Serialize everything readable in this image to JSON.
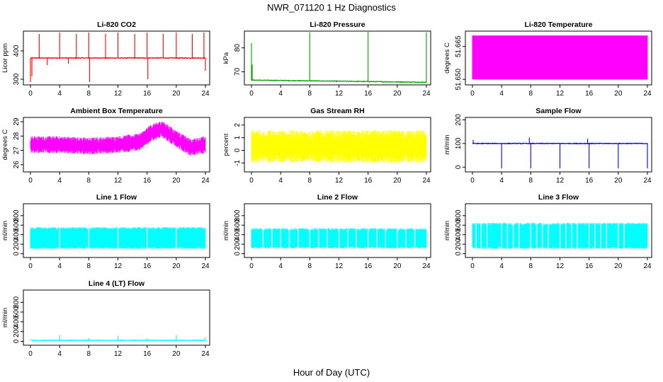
{
  "figure": {
    "title": "NWR_071120  1 Hz Diagnostics",
    "xlabel": "Hour of Day (UTC)"
  },
  "chart_data": [
    {
      "type": "line",
      "title": "Li-820 CO2",
      "ylabel": "Licor ppm",
      "color": "#ff0000",
      "xlim": [
        0,
        24
      ],
      "ylim": [
        280,
        470
      ],
      "yticks": [
        300,
        400
      ],
      "xticks": [
        0,
        4,
        8,
        12,
        16,
        20,
        24
      ],
      "baseline": 375,
      "spikes": [
        {
          "x": 0.0,
          "y": 290
        },
        {
          "x": 0.2,
          "y": 310
        },
        {
          "x": 1.2,
          "y": 460
        },
        {
          "x": 2.3,
          "y": 350
        },
        {
          "x": 4.0,
          "y": 465
        },
        {
          "x": 5.2,
          "y": 355
        },
        {
          "x": 6.3,
          "y": 460
        },
        {
          "x": 8.0,
          "y": 465
        },
        {
          "x": 8.1,
          "y": 290
        },
        {
          "x": 10.3,
          "y": 460
        },
        {
          "x": 12.0,
          "y": 465
        },
        {
          "x": 14.3,
          "y": 460
        },
        {
          "x": 16.0,
          "y": 465
        },
        {
          "x": 16.1,
          "y": 300
        },
        {
          "x": 18.2,
          "y": 460
        },
        {
          "x": 20.0,
          "y": 465
        },
        {
          "x": 22.2,
          "y": 460
        },
        {
          "x": 23.8,
          "y": 465
        },
        {
          "x": 24.0,
          "y": 330
        }
      ]
    },
    {
      "type": "line",
      "title": "Li-820 Pressure",
      "ylabel": "kPa",
      "color": "#00a000",
      "xlim": [
        0,
        24
      ],
      "ylim": [
        64.5,
        87
      ],
      "yticks": [
        70,
        80
      ],
      "xticks": [
        0,
        4,
        8,
        12,
        16,
        20,
        24
      ],
      "baseline_start": 66.5,
      "baseline_end": 65.6,
      "spikes": [
        {
          "x": 0.0,
          "y": 82
        },
        {
          "x": 0.1,
          "y": 73
        },
        {
          "x": 8.0,
          "y": 86.5
        },
        {
          "x": 16.0,
          "y": 86.8
        },
        {
          "x": 24.0,
          "y": 86.5
        }
      ]
    },
    {
      "type": "line",
      "title": "Li-820 Temperature",
      "ylabel": "degrees C",
      "color": "#ff00ff",
      "xlim": [
        0,
        24
      ],
      "ylim": [
        51.6475,
        51.672
      ],
      "yticks": [
        51.65,
        51.665
      ],
      "ytick_labels": [
        "51.650",
        "51.665"
      ],
      "xticks": [
        0,
        4,
        8,
        12,
        16,
        20,
        24
      ],
      "value_low": 51.65,
      "value_high": 51.67,
      "description": "signal toggles continuously between two levels"
    },
    {
      "type": "line",
      "title": "Ambient Box Temperature",
      "ylabel": "degrees C",
      "color": "#ff00ff",
      "xlim": [
        0,
        24
      ],
      "ylim": [
        25.5,
        29.3
      ],
      "yticks": [
        26,
        27,
        28,
        29
      ],
      "xticks": [
        0,
        4,
        8,
        12,
        16,
        20,
        24
      ],
      "mean_profile": [
        {
          "x": 0,
          "y": 27.4
        },
        {
          "x": 4,
          "y": 27.4
        },
        {
          "x": 8,
          "y": 27.3
        },
        {
          "x": 12,
          "y": 27.4
        },
        {
          "x": 15,
          "y": 27.6
        },
        {
          "x": 16.5,
          "y": 28.2
        },
        {
          "x": 18,
          "y": 28.5
        },
        {
          "x": 20,
          "y": 27.8
        },
        {
          "x": 22,
          "y": 27.2
        },
        {
          "x": 24,
          "y": 27.4
        }
      ],
      "noise_amplitude": 0.6
    },
    {
      "type": "line",
      "title": "Gas Stream RH",
      "ylabel": "percent",
      "color": "#ffff00",
      "xlim": [
        0,
        24
      ],
      "ylim": [
        -1.7,
        2.6
      ],
      "yticks": [
        -1,
        0,
        1,
        2
      ],
      "xticks": [
        0,
        4,
        8,
        12,
        16,
        20,
        24
      ],
      "mean": 0.3,
      "noise_amplitude": 1.3
    },
    {
      "type": "line",
      "title": "Sample Flow",
      "ylabel": "ml/min",
      "color": "#0000ff",
      "xlim": [
        0,
        24
      ],
      "ylim": [
        -20,
        210
      ],
      "yticks": [
        0,
        100,
        200
      ],
      "xticks": [
        0,
        4,
        8,
        12,
        16,
        20,
        24
      ],
      "baseline": 100,
      "spikes": [
        {
          "x": 0.1,
          "y": 115
        },
        {
          "x": 4.0,
          "y": -5
        },
        {
          "x": 7.8,
          "y": 125
        },
        {
          "x": 8.0,
          "y": -5
        },
        {
          "x": 12.0,
          "y": -5
        },
        {
          "x": 15.8,
          "y": 120
        },
        {
          "x": 16.0,
          "y": -5
        },
        {
          "x": 20.0,
          "y": -5
        },
        {
          "x": 24.0,
          "y": -5
        }
      ]
    },
    {
      "type": "area",
      "title": "Line 1 Flow",
      "ylabel": "ml/min",
      "color": "#00ffff",
      "xlim": [
        0,
        24
      ],
      "ylim": [
        -80,
        1050
      ],
      "yticks": [
        0,
        200,
        400,
        600,
        800
      ],
      "xticks": [
        0,
        4,
        8,
        12,
        16,
        20,
        24
      ],
      "band_low": 100,
      "band_high": 560,
      "gaps": [
        4,
        8,
        12,
        16,
        20
      ]
    },
    {
      "type": "area",
      "title": "Line 2 Flow",
      "ylabel": "ml/min",
      "color": "#00ffff",
      "xlim": [
        0,
        24
      ],
      "ylim": [
        -80,
        1050
      ],
      "yticks": [
        0,
        200,
        400,
        600,
        800
      ],
      "xticks": [
        0,
        4,
        8,
        12,
        16,
        20,
        24
      ],
      "band_low": 110,
      "band_high": 540,
      "gaps": [
        1.6,
        2.8,
        4,
        5.2,
        6.4,
        8,
        9.2,
        10.4,
        12,
        13.2,
        14.4,
        16,
        17.2,
        18.4,
        20,
        21.2,
        22.4
      ]
    },
    {
      "type": "area",
      "title": "Line 3 Flow",
      "ylabel": "ml/min",
      "color": "#00ffff",
      "xlim": [
        0,
        24
      ],
      "ylim": [
        -80,
        1050
      ],
      "yticks": [
        0,
        200,
        400,
        600,
        800
      ],
      "xticks": [
        0,
        4,
        8,
        12,
        16,
        20,
        24
      ],
      "band_low": 100,
      "band_high": 650,
      "gaps": [
        0.5,
        1.2,
        2,
        4,
        4.8,
        5.6,
        6.4,
        8,
        8.8,
        9.6,
        10.4,
        12,
        12.8,
        13.6,
        14.4,
        16,
        16.8,
        17.6,
        18.4,
        20,
        20.8
      ]
    },
    {
      "type": "line",
      "title": "Line 4 (LT) Flow",
      "ylabel": "ml/min",
      "color": "#00ffff",
      "xlim": [
        0,
        24
      ],
      "ylim": [
        -80,
        1050
      ],
      "yticks": [
        0,
        200,
        400,
        600,
        800
      ],
      "xticks": [
        0,
        4,
        8,
        12,
        16,
        20,
        24
      ],
      "baseline": 20,
      "spikes": [
        {
          "x": 4.0,
          "y": 130
        },
        {
          "x": 8.0,
          "y": 70
        },
        {
          "x": 12.0,
          "y": 110
        },
        {
          "x": 16.0,
          "y": 60
        },
        {
          "x": 20.0,
          "y": 130
        },
        {
          "x": 24.0,
          "y": 80
        }
      ]
    }
  ]
}
